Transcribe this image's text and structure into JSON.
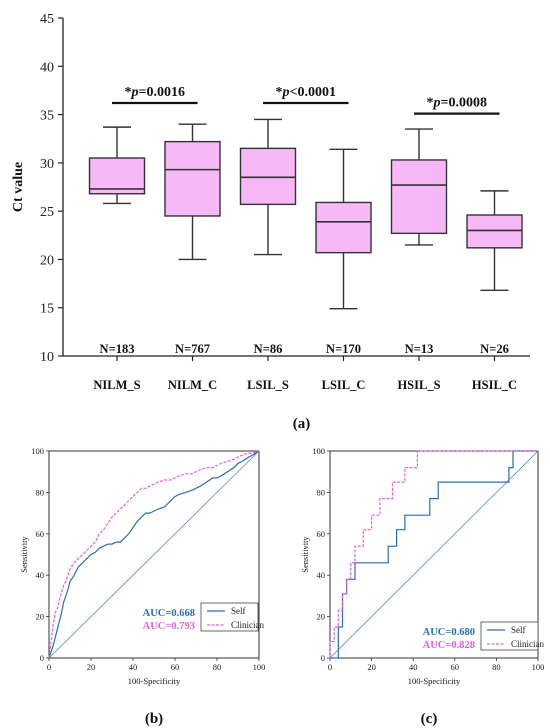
{
  "colors": {
    "box_fill": "#f6b8f6",
    "box_stroke": "#333333",
    "self": "#2a6fb0",
    "clinician": "#e060e0",
    "diagonal": "#3a7bd5"
  },
  "chart_data": [
    {
      "type": "box",
      "panel_label": "(a)",
      "ylabel": "Ct value",
      "ylim": [
        10,
        45
      ],
      "yticks": [
        10,
        15,
        20,
        25,
        30,
        35,
        40,
        45
      ],
      "categories": [
        "NILM_S",
        "NILM_C",
        "LSIL_S",
        "LSIL_C",
        "HSIL_S",
        "HSIL_C"
      ],
      "n_labels": [
        "N=183",
        "N=767",
        "N=86",
        "N=170",
        "N=13",
        "N=26"
      ],
      "boxes": [
        {
          "min": 25.8,
          "q1": 26.8,
          "median": 27.3,
          "q3": 30.5,
          "max": 33.7
        },
        {
          "min": 20.0,
          "q1": 24.5,
          "median": 29.3,
          "q3": 32.2,
          "max": 34.0
        },
        {
          "min": 20.5,
          "q1": 25.7,
          "median": 28.5,
          "q3": 31.5,
          "max": 34.5
        },
        {
          "min": 14.9,
          "q1": 20.7,
          "median": 23.9,
          "q3": 25.9,
          "max": 31.4
        },
        {
          "min": 21.5,
          "q1": 22.7,
          "median": 27.7,
          "q3": 30.3,
          "max": 33.5
        },
        {
          "min": 16.8,
          "q1": 21.2,
          "median": 23.0,
          "q3": 24.6,
          "max": 27.1
        }
      ],
      "comparisons": [
        {
          "pair": [
            0,
            1
          ],
          "text_prefix": "*",
          "text_italic": "p",
          "text_suffix": "=0.0016",
          "y": 36.2
        },
        {
          "pair": [
            2,
            3
          ],
          "text_prefix": "*",
          "text_italic": "p",
          "text_suffix": "<0.0001",
          "y": 36.2
        },
        {
          "pair": [
            4,
            5
          ],
          "text_prefix": "*",
          "text_italic": "p",
          "text_suffix": "=0.0008",
          "y": 35.1
        }
      ]
    },
    {
      "type": "line",
      "panel_label": "(b)",
      "xlabel": "100-Specificity",
      "ylabel": "Sensitivity",
      "xlim": [
        0,
        100
      ],
      "ylim": [
        0,
        100
      ],
      "xticks": [
        0,
        20,
        40,
        60,
        80,
        100
      ],
      "yticks": [
        0,
        20,
        40,
        60,
        80,
        100
      ],
      "auc_labels": [
        "AUC=0.668",
        "AUC=0.793"
      ],
      "series": [
        {
          "name": "Self",
          "color": "#2a6fb0",
          "x": [
            0,
            1,
            2,
            3,
            4,
            5,
            6,
            7,
            8,
            9,
            10,
            12,
            14,
            16,
            18,
            20,
            22,
            24,
            26,
            28,
            30,
            32,
            34,
            36,
            38,
            40,
            42,
            44,
            46,
            48,
            50,
            52,
            55,
            58,
            60,
            62,
            65,
            68,
            70,
            72,
            75,
            78,
            80,
            82,
            85,
            88,
            90,
            92,
            95,
            97,
            100
          ],
          "y": [
            0,
            3,
            6,
            10,
            14,
            18,
            22,
            27,
            30,
            33,
            37,
            40,
            44,
            46,
            48,
            50,
            51,
            53,
            54,
            55,
            55,
            56,
            56,
            58,
            60,
            63,
            66,
            68,
            70,
            70,
            71,
            72,
            73,
            76,
            78,
            79,
            80,
            81,
            82,
            83,
            85,
            87,
            87,
            88,
            90,
            92,
            94,
            95,
            97,
            98,
            100
          ]
        },
        {
          "name": "Clinician",
          "color": "#e060e0",
          "x": [
            0,
            1,
            2,
            3,
            4,
            5,
            6,
            7,
            8,
            9,
            10,
            12,
            14,
            16,
            18,
            20,
            22,
            24,
            26,
            28,
            30,
            32,
            34,
            36,
            38,
            40,
            42,
            44,
            46,
            48,
            50,
            52,
            55,
            58,
            60,
            62,
            65,
            68,
            70,
            72,
            75,
            78,
            80,
            82,
            85,
            88,
            90,
            92,
            95,
            97,
            100
          ],
          "y": [
            0,
            8,
            16,
            22,
            24,
            28,
            32,
            35,
            37,
            40,
            43,
            46,
            48,
            50,
            52,
            54,
            56,
            60,
            62,
            65,
            68,
            70,
            72,
            74,
            76,
            78,
            80,
            82,
            82,
            83,
            84,
            85,
            86,
            86,
            87,
            88,
            89,
            89,
            90,
            91,
            92,
            92,
            93,
            94,
            95,
            96,
            97,
            98,
            99,
            99,
            100
          ]
        }
      ]
    },
    {
      "type": "line",
      "panel_label": "(c)",
      "xlabel": "100-Specificity",
      "ylabel": "Sensitivity",
      "xlim": [
        0,
        100
      ],
      "ylim": [
        0,
        100
      ],
      "xticks": [
        0,
        20,
        40,
        60,
        80,
        100
      ],
      "yticks": [
        0,
        20,
        40,
        60,
        80,
        100
      ],
      "auc_labels": [
        "AUC=0.680",
        "AUC=0.828"
      ],
      "series": [
        {
          "name": "Self",
          "color": "#2a6fb0",
          "x": [
            0,
            4,
            4,
            6,
            6,
            8,
            8,
            12,
            12,
            28,
            28,
            32,
            32,
            36,
            36,
            48,
            48,
            52,
            52,
            86,
            86,
            88,
            88,
            100
          ],
          "y": [
            0,
            0,
            15,
            15,
            31,
            31,
            38,
            38,
            46,
            46,
            54,
            54,
            62,
            62,
            69,
            69,
            77,
            77,
            85,
            85,
            92,
            92,
            100,
            100
          ]
        },
        {
          "name": "Clinician",
          "color": "#e060e0",
          "x": [
            0,
            0,
            2,
            2,
            4,
            4,
            6,
            6,
            8,
            8,
            10,
            10,
            12,
            12,
            16,
            16,
            20,
            20,
            24,
            24,
            30,
            30,
            36,
            36,
            42,
            42,
            100
          ],
          "y": [
            0,
            8,
            8,
            15,
            15,
            23,
            23,
            31,
            31,
            38,
            38,
            46,
            46,
            54,
            54,
            62,
            62,
            69,
            69,
            77,
            77,
            85,
            85,
            92,
            92,
            100,
            100
          ]
        }
      ]
    }
  ]
}
